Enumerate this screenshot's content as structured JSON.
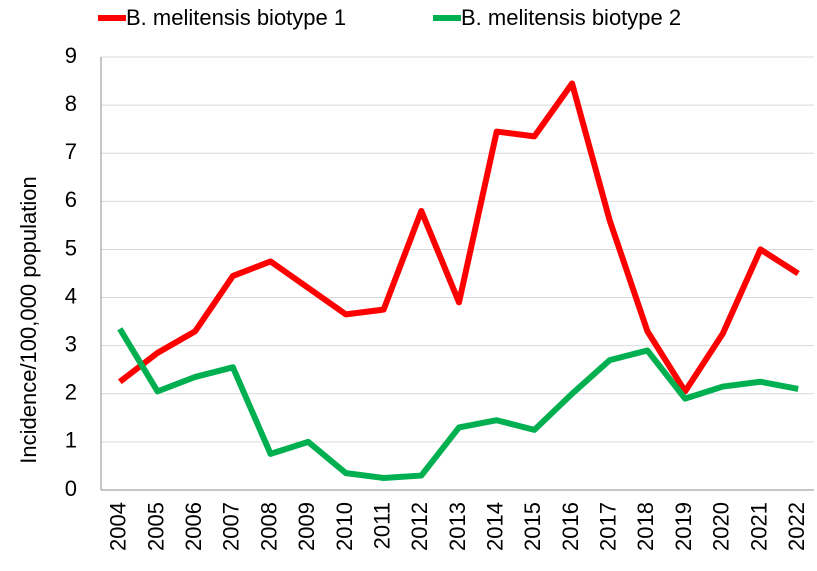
{
  "chart_data": {
    "type": "line",
    "y_label": "Incidence/100,000 population",
    "categories": [
      "2004",
      "2005",
      "2006",
      "2007",
      "2008",
      "2009",
      "2010",
      "2011",
      "2012",
      "2013",
      "2014",
      "2015",
      "2016",
      "2017",
      "2018",
      "2019",
      "2020",
      "2021",
      "2022"
    ],
    "series": [
      {
        "name": "B. melitensis biotype 1",
        "color": "#ff0000",
        "values": [
          2.25,
          2.85,
          3.3,
          4.45,
          4.75,
          4.2,
          3.65,
          3.75,
          5.8,
          3.9,
          7.45,
          7.35,
          8.45,
          5.6,
          3.3,
          2.05,
          3.25,
          5.0,
          4.5
        ]
      },
      {
        "name": "B. melitensis biotype 2",
        "color": "#00b050",
        "values": [
          3.35,
          2.05,
          2.35,
          2.55,
          0.75,
          1.0,
          0.35,
          0.25,
          0.3,
          1.3,
          1.45,
          1.25,
          2.0,
          2.7,
          2.9,
          1.9,
          2.15,
          2.25,
          2.1
        ]
      }
    ],
    "ylim": [
      0,
      9
    ],
    "yticks": [
      0,
      1,
      2,
      3,
      4,
      5,
      6,
      7,
      8,
      9
    ],
    "grid": true,
    "legend": "top"
  }
}
